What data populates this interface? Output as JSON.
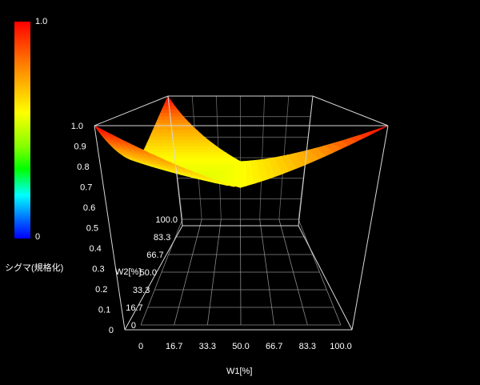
{
  "chart_data": {
    "type": "surface3d",
    "xlabel": "W1[%]",
    "ylabel": "W2[%]",
    "zlabel": "",
    "x_ticks": [
      "0",
      "16.7",
      "33.3",
      "50.0",
      "66.7",
      "83.3",
      "100.0"
    ],
    "y_ticks": [
      "0",
      "16.7",
      "33.3",
      "50.0",
      "66.7",
      "83.3",
      "100.0"
    ],
    "z_ticks": [
      "0",
      "0.1",
      "0.2",
      "0.3",
      "0.4",
      "0.5",
      "0.6",
      "0.7",
      "0.8",
      "0.9",
      "1.0"
    ],
    "xlim": [
      0,
      100
    ],
    "ylim": [
      0,
      100
    ],
    "zlim": [
      0,
      1
    ],
    "colorbar": {
      "min_label": "0",
      "max_label": "1.0",
      "title": "シグマ(規格化)"
    },
    "surface_points": [
      {
        "w1": 0,
        "w2": 0,
        "sigma": 1.0
      },
      {
        "w1": 100,
        "w2": 0,
        "sigma": 1.0
      },
      {
        "w1": 0,
        "w2": 100,
        "sigma": 1.0
      },
      {
        "w1": 33.3,
        "w2": 33.3,
        "sigma": 0.68
      }
    ]
  }
}
